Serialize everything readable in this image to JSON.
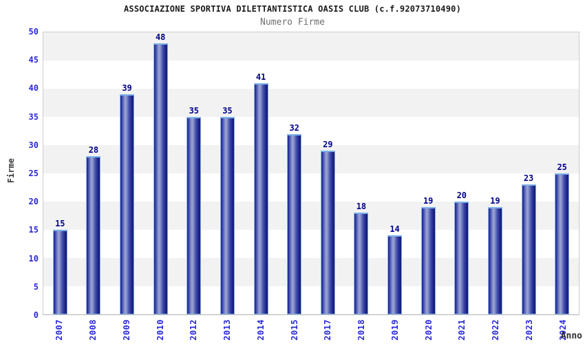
{
  "chart_data": {
    "type": "bar",
    "title": "ASSOCIAZIONE SPORTIVA DILETTANTISTICA OASIS CLUB (c.f.92073710490)",
    "subtitle": "Numero Firme",
    "xlabel": "Anno",
    "ylabel": "Firme",
    "categories": [
      "2007",
      "2008",
      "2009",
      "2010",
      "2012",
      "2013",
      "2014",
      "2015",
      "2017",
      "2018",
      "2019",
      "2020",
      "2021",
      "2022",
      "2023",
      "2024"
    ],
    "values": [
      15,
      28,
      39,
      48,
      35,
      35,
      41,
      32,
      29,
      18,
      14,
      19,
      20,
      19,
      23,
      25
    ],
    "ylim": [
      0,
      50
    ],
    "yticks": [
      50,
      45,
      40,
      35,
      30,
      25,
      20,
      15,
      10,
      5,
      0
    ],
    "bar_value_labels_shown": true,
    "legend": "none",
    "grid": "alternating horizontal gray/white bands every 5 units",
    "x_tick_rotation_degrees": 90,
    "colors": {
      "tick_label": "#2929d6",
      "bar_value_label": "#00008b",
      "bar_dark_edge": "#1b2384",
      "bar_highlight": "#9ba5d6",
      "bar_outline_cap": "#7cb0e8",
      "band_gray": "#f2f2f2",
      "band_white": "#ffffff",
      "title": "#1a1a1a",
      "subtitle": "#6e6e6e",
      "axis_title": "#3c3c3c",
      "plot_border": "#cccccc"
    }
  }
}
